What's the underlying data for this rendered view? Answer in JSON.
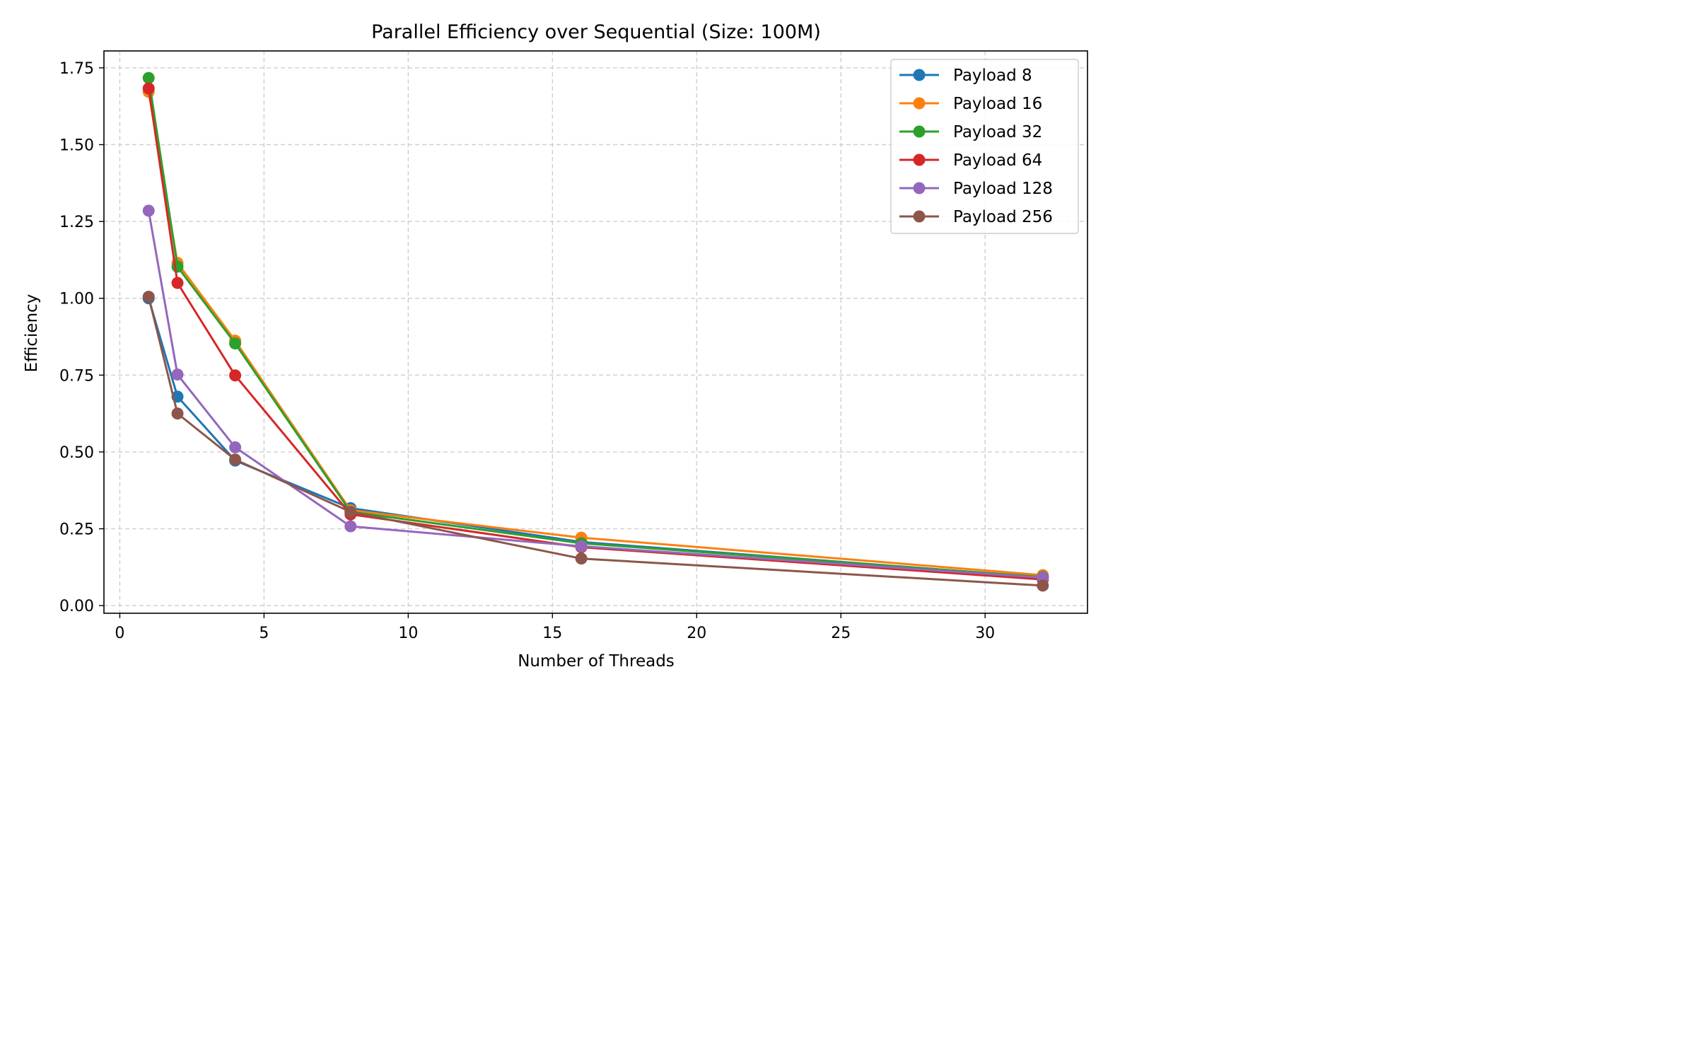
{
  "chart_data": {
    "type": "line",
    "title": "Parallel Efficiency over Sequential (Size: 100M)",
    "xlabel": "Number of Threads",
    "ylabel": "Efficiency",
    "xlim": [
      -0.55,
      33.55
    ],
    "ylim": [
      -0.025,
      1.805
    ],
    "xticks": [
      0,
      5,
      10,
      15,
      20,
      25,
      30
    ],
    "xtick_labels": [
      "0",
      "5",
      "10",
      "15",
      "20",
      "25",
      "30"
    ],
    "yticks": [
      0,
      0.25,
      0.5,
      0.75,
      1.0,
      1.25,
      1.5,
      1.75
    ],
    "ytick_labels": [
      "0.00",
      "0.25",
      "0.50",
      "0.75",
      "1.00",
      "1.25",
      "1.50",
      "1.75"
    ],
    "grid": true,
    "legend_position": "top-right",
    "x": [
      1,
      2,
      4,
      8,
      16,
      32
    ],
    "series": [
      {
        "name": "Payload 8",
        "color": "#1f77b4",
        "values": [
          1.0,
          0.68,
          0.472,
          0.317,
          0.207,
          0.092
        ]
      },
      {
        "name": "Payload 16",
        "color": "#ff7f0e",
        "values": [
          1.672,
          1.115,
          0.862,
          0.31,
          0.221,
          0.099
        ]
      },
      {
        "name": "Payload 32",
        "color": "#2ca02c",
        "values": [
          1.717,
          1.103,
          0.853,
          0.305,
          0.203,
          0.093
        ]
      },
      {
        "name": "Payload 64",
        "color": "#d62728",
        "values": [
          1.683,
          1.05,
          0.749,
          0.297,
          0.19,
          0.085
        ]
      },
      {
        "name": "Payload 128",
        "color": "#9467bd",
        "values": [
          1.285,
          0.752,
          0.515,
          0.258,
          0.193,
          0.091
        ]
      },
      {
        "name": "Payload 256",
        "color": "#8c564b",
        "values": [
          1.005,
          0.625,
          0.475,
          0.305,
          0.153,
          0.065
        ]
      }
    ]
  }
}
